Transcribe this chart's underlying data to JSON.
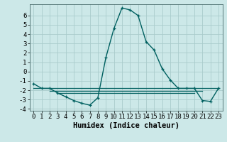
{
  "xlabel": "Humidex (Indice chaleur)",
  "background_color": "#cce8e8",
  "grid_color": "#aacccc",
  "line_color": "#006060",
  "xlim": [
    -0.5,
    23.5
  ],
  "ylim": [
    -4.2,
    7.2
  ],
  "xticks": [
    0,
    1,
    2,
    3,
    4,
    5,
    6,
    7,
    8,
    9,
    10,
    11,
    12,
    13,
    14,
    15,
    16,
    17,
    18,
    19,
    20,
    21,
    22,
    23
  ],
  "yticks": [
    -4,
    -3,
    -2,
    -1,
    0,
    1,
    2,
    3,
    4,
    5,
    6
  ],
  "series_main": {
    "x": [
      0,
      1,
      2,
      3,
      4,
      5,
      6,
      7,
      8,
      9,
      10,
      11,
      12,
      13,
      14,
      15,
      16,
      17,
      18,
      19,
      20,
      21,
      22,
      23
    ],
    "y": [
      -1.3,
      -1.8,
      -1.8,
      -2.3,
      -2.7,
      -3.1,
      -3.4,
      -3.6,
      -2.8,
      1.5,
      4.6,
      6.8,
      6.6,
      6.0,
      3.2,
      2.3,
      0.3,
      -0.9,
      -1.8,
      -1.8,
      -1.8,
      -3.1,
      -3.2,
      -1.8
    ]
  },
  "series_flat": [
    {
      "x": [
        0,
        23
      ],
      "y": [
        -1.8,
        -1.8
      ]
    },
    {
      "x": [
        2,
        21
      ],
      "y": [
        -2.1,
        -2.1
      ]
    },
    {
      "x": [
        3,
        20
      ],
      "y": [
        -2.3,
        -2.3
      ]
    }
  ],
  "xlabel_fontsize": 7.5,
  "tick_fontsize": 6.5
}
